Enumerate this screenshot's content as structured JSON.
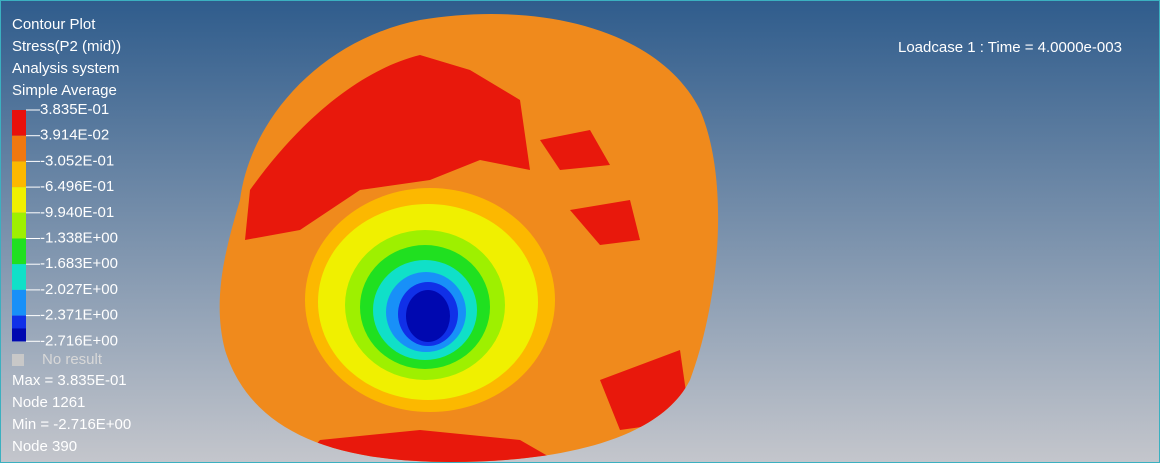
{
  "header": {
    "lines": [
      "Contour Plot",
      "Stress(P2 (mid))",
      "Analysis system",
      "Simple Average"
    ]
  },
  "legend": {
    "levels": [
      "3.835E-01",
      "3.914E-02",
      "-3.052E-01",
      "-6.496E-01",
      "-9.940E-01",
      "-1.338E+00",
      "-1.683E+00",
      "-2.027E+00",
      "-2.371E+00",
      "-2.716E+00"
    ],
    "colors": [
      "#e8100c",
      "#f07810",
      "#fcb800",
      "#f0f000",
      "#9ef000",
      "#20e020",
      "#10e0c8",
      "#1890f8",
      "#1030e8",
      "#0008b0"
    ],
    "no_result": "No result"
  },
  "summary": {
    "max": "Max = 3.835E-01",
    "max_node": "Node 1261",
    "min": "Min = -2.716E+00",
    "min_node": "Node 390"
  },
  "loadcase": "Loadcase 1 : Time = 4.0000e-003"
}
